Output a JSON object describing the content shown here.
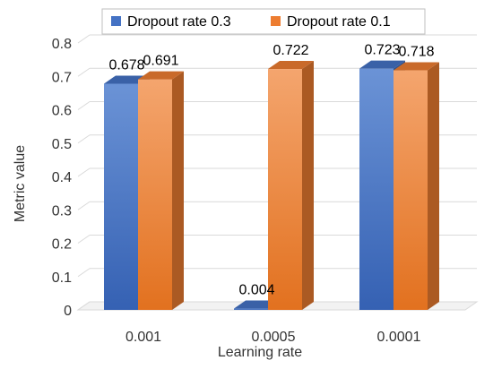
{
  "chart_data": {
    "type": "bar",
    "categories": [
      "0.001",
      "0.0005",
      "0.0001"
    ],
    "series": [
      {
        "name": "Dropout rate 0.3",
        "values": [
          0.678,
          0.004,
          0.723
        ],
        "color": "#4472C4"
      },
      {
        "name": "Dropout rate 0.1",
        "values": [
          0.691,
          0.722,
          0.718
        ],
        "color": "#ED7D31"
      }
    ],
    "data_labels": [
      [
        "0.678",
        "0.004",
        "0.723"
      ],
      [
        "0.691",
        "0.722",
        "0.718"
      ]
    ],
    "xlabel": "Learning rate",
    "ylabel": "Metric value",
    "ylim": [
      0,
      0.8
    ],
    "yticks": [
      "0",
      "0.1",
      "0.2",
      "0.3",
      "0.4",
      "0.5",
      "0.6",
      "0.7",
      "0.8"
    ],
    "grid": true,
    "legend_position": "top"
  }
}
